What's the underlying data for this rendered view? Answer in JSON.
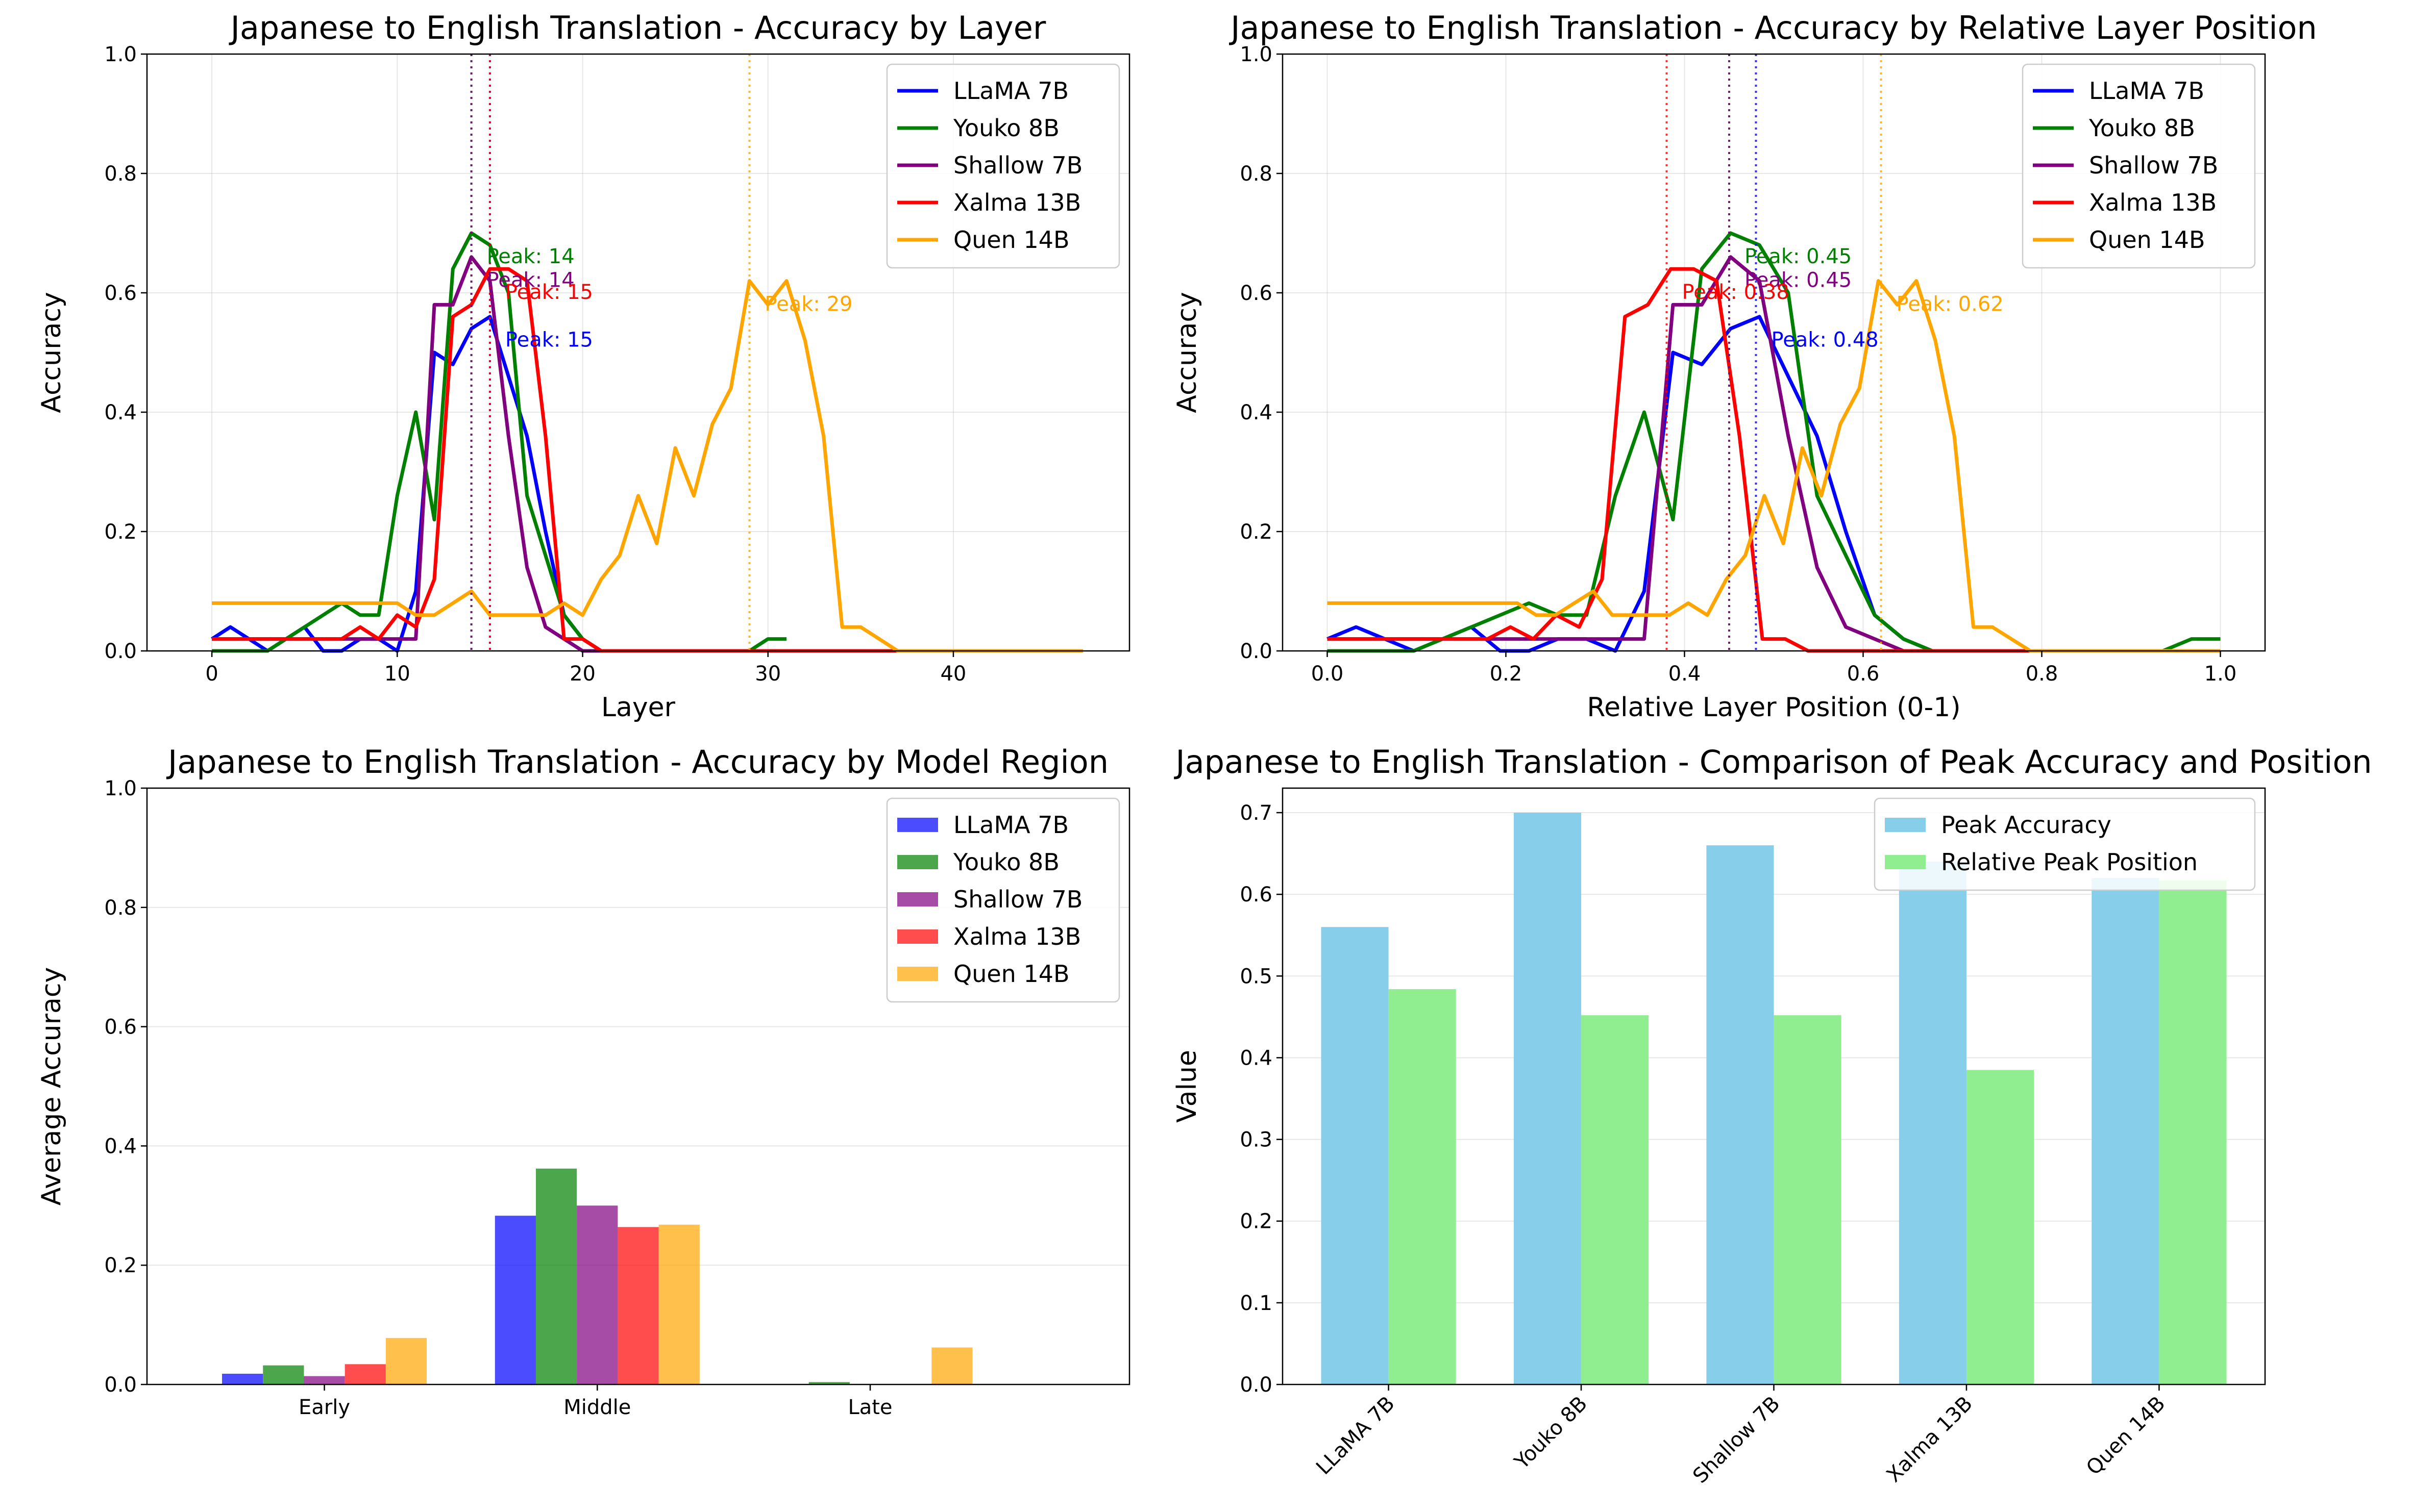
{
  "colors": {
    "LLaMA 7B": "#0000ff",
    "Youko 8B": "#008000",
    "Shallow 7B": "#800080",
    "Xalma 13B": "#ff0000",
    "Quen 14B": "#ffa500",
    "peak_accuracy_bar": "#87ceeb",
    "relative_position_bar": "#90ee90"
  },
  "chart_data": [
    {
      "type": "line",
      "title": "Japanese to English Translation - Accuracy by Layer",
      "xlabel": "Layer",
      "ylabel": "Accuracy",
      "xlim": [
        -3.5,
        49.5
      ],
      "ylim": [
        0,
        1.0
      ],
      "xticks": [
        0,
        10,
        20,
        30,
        40
      ],
      "yticks": [
        0.0,
        0.2,
        0.4,
        0.6,
        0.8,
        1.0
      ],
      "grid": true,
      "legend_position": "upper right",
      "series": [
        {
          "name": "LLaMA 7B",
          "x": [
            0,
            1,
            2,
            3,
            4,
            5,
            6,
            7,
            8,
            9,
            10,
            11,
            12,
            13,
            14,
            15,
            16,
            17,
            18,
            19,
            20,
            21,
            22,
            23,
            24,
            25,
            26,
            27,
            28,
            29,
            30,
            31
          ],
          "y": [
            0.02,
            0.04,
            0.02,
            0.0,
            0.02,
            0.04,
            0.0,
            0.0,
            0.02,
            0.02,
            0.0,
            0.1,
            0.5,
            0.48,
            0.54,
            0.56,
            0.46,
            0.36,
            0.2,
            0.06,
            0.02,
            0.0,
            0.0,
            0.0,
            0.0,
            0.0,
            0.0,
            0.0,
            0.0,
            0.0,
            0.0,
            0.0
          ]
        },
        {
          "name": "Youko 8B",
          "x": [
            0,
            1,
            2,
            3,
            4,
            5,
            6,
            7,
            8,
            9,
            10,
            11,
            12,
            13,
            14,
            15,
            16,
            17,
            18,
            19,
            20,
            21,
            22,
            23,
            24,
            25,
            26,
            27,
            28,
            29,
            30,
            31
          ],
          "y": [
            0.0,
            0.0,
            0.0,
            0.0,
            0.02,
            0.04,
            0.06,
            0.08,
            0.06,
            0.06,
            0.26,
            0.4,
            0.22,
            0.64,
            0.7,
            0.68,
            0.6,
            0.26,
            0.16,
            0.06,
            0.02,
            0.0,
            0.0,
            0.0,
            0.0,
            0.0,
            0.0,
            0.0,
            0.0,
            0.0,
            0.02,
            0.02
          ]
        },
        {
          "name": "Shallow 7B",
          "x": [
            0,
            1,
            2,
            3,
            4,
            5,
            6,
            7,
            8,
            9,
            10,
            11,
            12,
            13,
            14,
            15,
            16,
            17,
            18,
            19,
            20,
            21,
            22,
            23,
            24,
            25,
            26,
            27,
            28,
            29,
            30,
            31
          ],
          "y": [
            0.02,
            0.02,
            0.02,
            0.02,
            0.02,
            0.02,
            0.02,
            0.02,
            0.02,
            0.02,
            0.02,
            0.02,
            0.58,
            0.58,
            0.66,
            0.62,
            0.36,
            0.14,
            0.04,
            0.02,
            0.0,
            0.0,
            0.0,
            0.0,
            0.0,
            0.0,
            0.0,
            0.0,
            0.0,
            0.0,
            0.0,
            0.0
          ]
        },
        {
          "name": "Xalma 13B",
          "x": [
            0,
            1,
            2,
            3,
            4,
            5,
            6,
            7,
            8,
            9,
            10,
            11,
            12,
            13,
            14,
            15,
            16,
            17,
            18,
            19,
            20,
            21,
            22,
            23,
            24,
            25,
            26,
            27,
            28,
            29,
            30,
            31,
            32,
            33,
            34,
            35,
            36,
            37,
            38,
            39
          ],
          "y": [
            0.02,
            0.02,
            0.02,
            0.02,
            0.02,
            0.02,
            0.02,
            0.02,
            0.04,
            0.02,
            0.06,
            0.04,
            0.12,
            0.56,
            0.58,
            0.64,
            0.64,
            0.62,
            0.36,
            0.02,
            0.02,
            0.0,
            0.0,
            0.0,
            0.0,
            0.0,
            0.0,
            0.0,
            0.0,
            0.0,
            0.0,
            0.0,
            0.0,
            0.0,
            0.0,
            0.0,
            0.0,
            0.0,
            0.0,
            0.0
          ]
        },
        {
          "name": "Quen 14B",
          "x": [
            0,
            1,
            2,
            3,
            4,
            5,
            6,
            7,
            8,
            9,
            10,
            11,
            12,
            13,
            14,
            15,
            16,
            17,
            18,
            19,
            20,
            21,
            22,
            23,
            24,
            25,
            26,
            27,
            28,
            29,
            30,
            31,
            32,
            33,
            34,
            35,
            36,
            37,
            38,
            39,
            40,
            41,
            42,
            43,
            44,
            45,
            46,
            47
          ],
          "y": [
            0.08,
            0.08,
            0.08,
            0.08,
            0.08,
            0.08,
            0.08,
            0.08,
            0.08,
            0.08,
            0.08,
            0.06,
            0.06,
            0.08,
            0.1,
            0.06,
            0.06,
            0.06,
            0.06,
            0.08,
            0.06,
            0.12,
            0.16,
            0.26,
            0.18,
            0.34,
            0.26,
            0.38,
            0.44,
            0.62,
            0.58,
            0.62,
            0.52,
            0.36,
            0.04,
            0.04,
            0.02,
            0.0,
            0.0,
            0.0,
            0.0,
            0.0,
            0.0,
            0.0,
            0.0,
            0.0,
            0.0,
            0.0
          ]
        }
      ],
      "peak_lines": [
        {
          "series": "LLaMA 7B",
          "x": 15,
          "label": "Peak: 15",
          "label_y": 0.52
        },
        {
          "series": "Youko 8B",
          "x": 14,
          "label": "Peak: 14",
          "label_y": 0.66
        },
        {
          "series": "Shallow 7B",
          "x": 14,
          "label": "Peak: 14",
          "label_y": 0.62
        },
        {
          "series": "Xalma 13B",
          "x": 15,
          "label": "Peak: 15",
          "label_y": 0.6
        },
        {
          "series": "Quen 14B",
          "x": 29,
          "label": "Peak: 29",
          "label_y": 0.58
        }
      ]
    },
    {
      "type": "line",
      "title": "Japanese to English Translation - Accuracy by Relative Layer Position",
      "xlabel": "Relative Layer Position (0-1)",
      "ylabel": "Accuracy",
      "xlim": [
        -0.05,
        1.05
      ],
      "ylim": [
        0,
        1.0
      ],
      "xticks": [
        0.0,
        0.2,
        0.4,
        0.6,
        0.8,
        1.0
      ],
      "yticks": [
        0.0,
        0.2,
        0.4,
        0.6,
        0.8,
        1.0
      ],
      "grid": true,
      "legend_position": "upper right",
      "series_layer_counts": {
        "LLaMA 7B": 31,
        "Youko 8B": 31,
        "Shallow 7B": 31,
        "Xalma 13B": 39,
        "Quen 14B": 47
      },
      "peak_lines": [
        {
          "series": "LLaMA 7B",
          "x": 0.48,
          "label": "Peak: 0.48",
          "label_y": 0.52
        },
        {
          "series": "Youko 8B",
          "x": 0.45,
          "label": "Peak: 0.45",
          "label_y": 0.66
        },
        {
          "series": "Shallow 7B",
          "x": 0.45,
          "label": "Peak: 0.45",
          "label_y": 0.62
        },
        {
          "series": "Xalma 13B",
          "x": 0.38,
          "label": "Peak: 0.38",
          "label_y": 0.6
        },
        {
          "series": "Quen 14B",
          "x": 0.62,
          "label": "Peak: 0.62",
          "label_y": 0.58
        }
      ]
    },
    {
      "type": "bar",
      "title": "Japanese to English Translation - Accuracy by Model Region",
      "xlabel": "",
      "ylabel": "Average Accuracy",
      "categories": [
        "Early",
        "Middle",
        "Late"
      ],
      "ylim": [
        0,
        1.0
      ],
      "yticks": [
        0.0,
        0.2,
        0.4,
        0.6,
        0.8,
        1.0
      ],
      "grid": true,
      "legend_position": "upper right",
      "series": [
        {
          "name": "LLaMA 7B",
          "values": [
            0.018,
            0.283,
            0.0
          ]
        },
        {
          "name": "Youko 8B",
          "values": [
            0.032,
            0.362,
            0.004
          ]
        },
        {
          "name": "Shallow 7B",
          "values": [
            0.014,
            0.3,
            0.0
          ]
        },
        {
          "name": "Xalma 13B",
          "values": [
            0.034,
            0.264,
            0.0
          ]
        },
        {
          "name": "Quen 14B",
          "values": [
            0.078,
            0.268,
            0.062
          ]
        }
      ]
    },
    {
      "type": "bar",
      "title": "Japanese to English Translation - Comparison of Peak Accuracy and Position",
      "xlabel": "",
      "ylabel": "Value",
      "categories": [
        "LLaMA 7B",
        "Youko 8B",
        "Shallow 7B",
        "Xalma 13B",
        "Quen 14B"
      ],
      "ylim": [
        0,
        0.73
      ],
      "yticks": [
        0.0,
        0.1,
        0.2,
        0.3,
        0.4,
        0.5,
        0.6,
        0.7
      ],
      "grid": true,
      "legend_position": "upper right",
      "series": [
        {
          "name": "Peak Accuracy",
          "values": [
            0.56,
            0.7,
            0.66,
            0.64,
            0.62
          ]
        },
        {
          "name": "Relative Peak Position",
          "values": [
            0.484,
            0.452,
            0.452,
            0.385,
            0.617
          ]
        }
      ]
    }
  ]
}
